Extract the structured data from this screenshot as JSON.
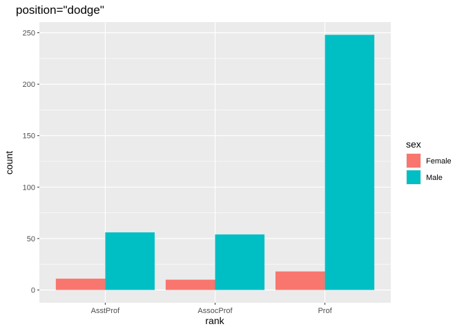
{
  "chart_data": {
    "type": "bar",
    "title": "position=\"dodge\"",
    "xlabel": "rank",
    "ylabel": "count",
    "categories": [
      "AsstProf",
      "AssocProf",
      "Prof"
    ],
    "series": [
      {
        "name": "Female",
        "color": "#F8766D",
        "values": [
          11,
          10,
          18
        ]
      },
      {
        "name": "Male",
        "color": "#00BFC4",
        "values": [
          56,
          54,
          248
        ]
      }
    ],
    "y_ticks": [
      0,
      50,
      100,
      150,
      200,
      250
    ],
    "ylim": [
      -12.4,
      260.4
    ],
    "grid": true,
    "legend": {
      "title": "sex",
      "placement": "right"
    },
    "panel_background": "#EBEBEB"
  }
}
